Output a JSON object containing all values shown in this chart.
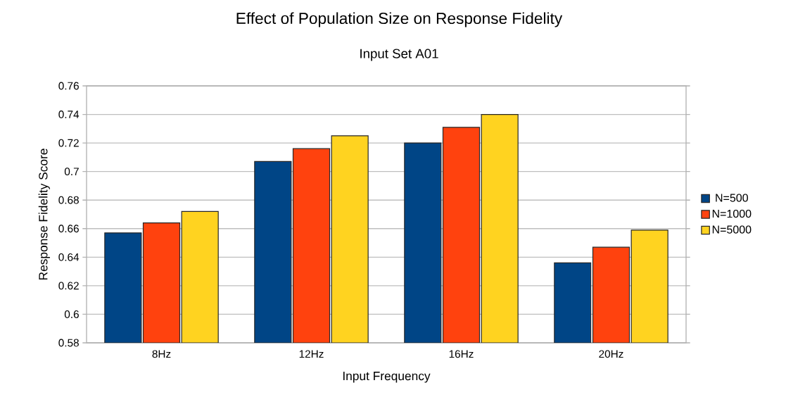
{
  "chart_data": {
    "type": "bar",
    "title": "Effect of Population Size on Response Fidelity",
    "subtitle": "Input Set A01",
    "xlabel": "Input Frequency",
    "ylabel": "Response Fidelity Score",
    "categories": [
      "8Hz",
      "12Hz",
      "16Hz",
      "20Hz"
    ],
    "series": [
      {
        "name": "N=500",
        "color": "#004586",
        "values": [
          0.657,
          0.707,
          0.72,
          0.636
        ]
      },
      {
        "name": "N=1000",
        "color": "#ff420e",
        "values": [
          0.664,
          0.716,
          0.731,
          0.647
        ]
      },
      {
        "name": "N=5000",
        "color": "#ffd320",
        "values": [
          0.672,
          0.725,
          0.74,
          0.659
        ]
      }
    ],
    "ylim": [
      0.58,
      0.76
    ],
    "yticks": [
      0.58,
      0.6,
      0.62,
      0.64,
      0.66,
      0.68,
      0.7,
      0.72,
      0.74,
      0.76
    ],
    "grid": "y",
    "legend": "right"
  }
}
